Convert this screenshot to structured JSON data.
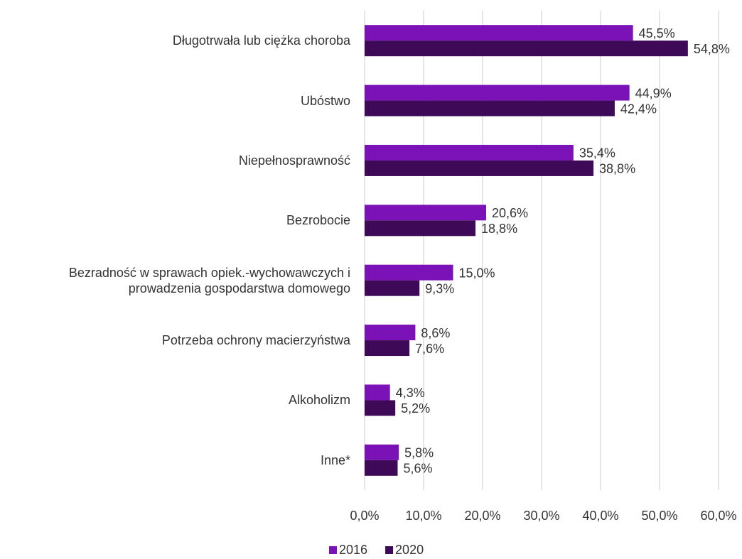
{
  "chart_data": {
    "type": "bar",
    "orientation": "horizontal",
    "categories": [
      "Długotrwała lub ciężka choroba",
      "Ubóstwo",
      "Niepełnosprawność",
      "Bezrobocie",
      "Bezradność w sprawach opiek.-wychowawczych i prowadzenia gospodarstwa domowego",
      "Potrzeba ochrony macierzyństwa",
      "Alkoholizm",
      "Inne*"
    ],
    "series": [
      {
        "name": "2016",
        "color": "#7a12b8",
        "values": [
          45.5,
          44.9,
          35.4,
          20.6,
          15.0,
          8.6,
          4.3,
          5.8
        ],
        "value_labels": [
          "45,5%",
          "44,9%",
          "35,4%",
          "20,6%",
          "15,0%",
          "8,6%",
          "4,3%",
          "5,8%"
        ]
      },
      {
        "name": "2020",
        "color": "#3e0a57",
        "values": [
          54.8,
          42.4,
          38.8,
          18.8,
          9.3,
          7.6,
          5.2,
          5.6
        ],
        "value_labels": [
          "54,8%",
          "42,4%",
          "38,8%",
          "18,8%",
          "9,3%",
          "7,6%",
          "5,2%",
          "5,6%"
        ]
      }
    ],
    "xlim": [
      0,
      60
    ],
    "xticks": [
      {
        "value": 0,
        "label": "0,0%"
      },
      {
        "value": 10,
        "label": "10,0%"
      },
      {
        "value": 20,
        "label": "20,0%"
      },
      {
        "value": 30,
        "label": "30,0%"
      },
      {
        "value": 40,
        "label": "40,0%"
      },
      {
        "value": 50,
        "label": "50,0%"
      },
      {
        "value": 60,
        "label": "60,0%"
      }
    ],
    "grid": true,
    "legend": "bottom"
  }
}
